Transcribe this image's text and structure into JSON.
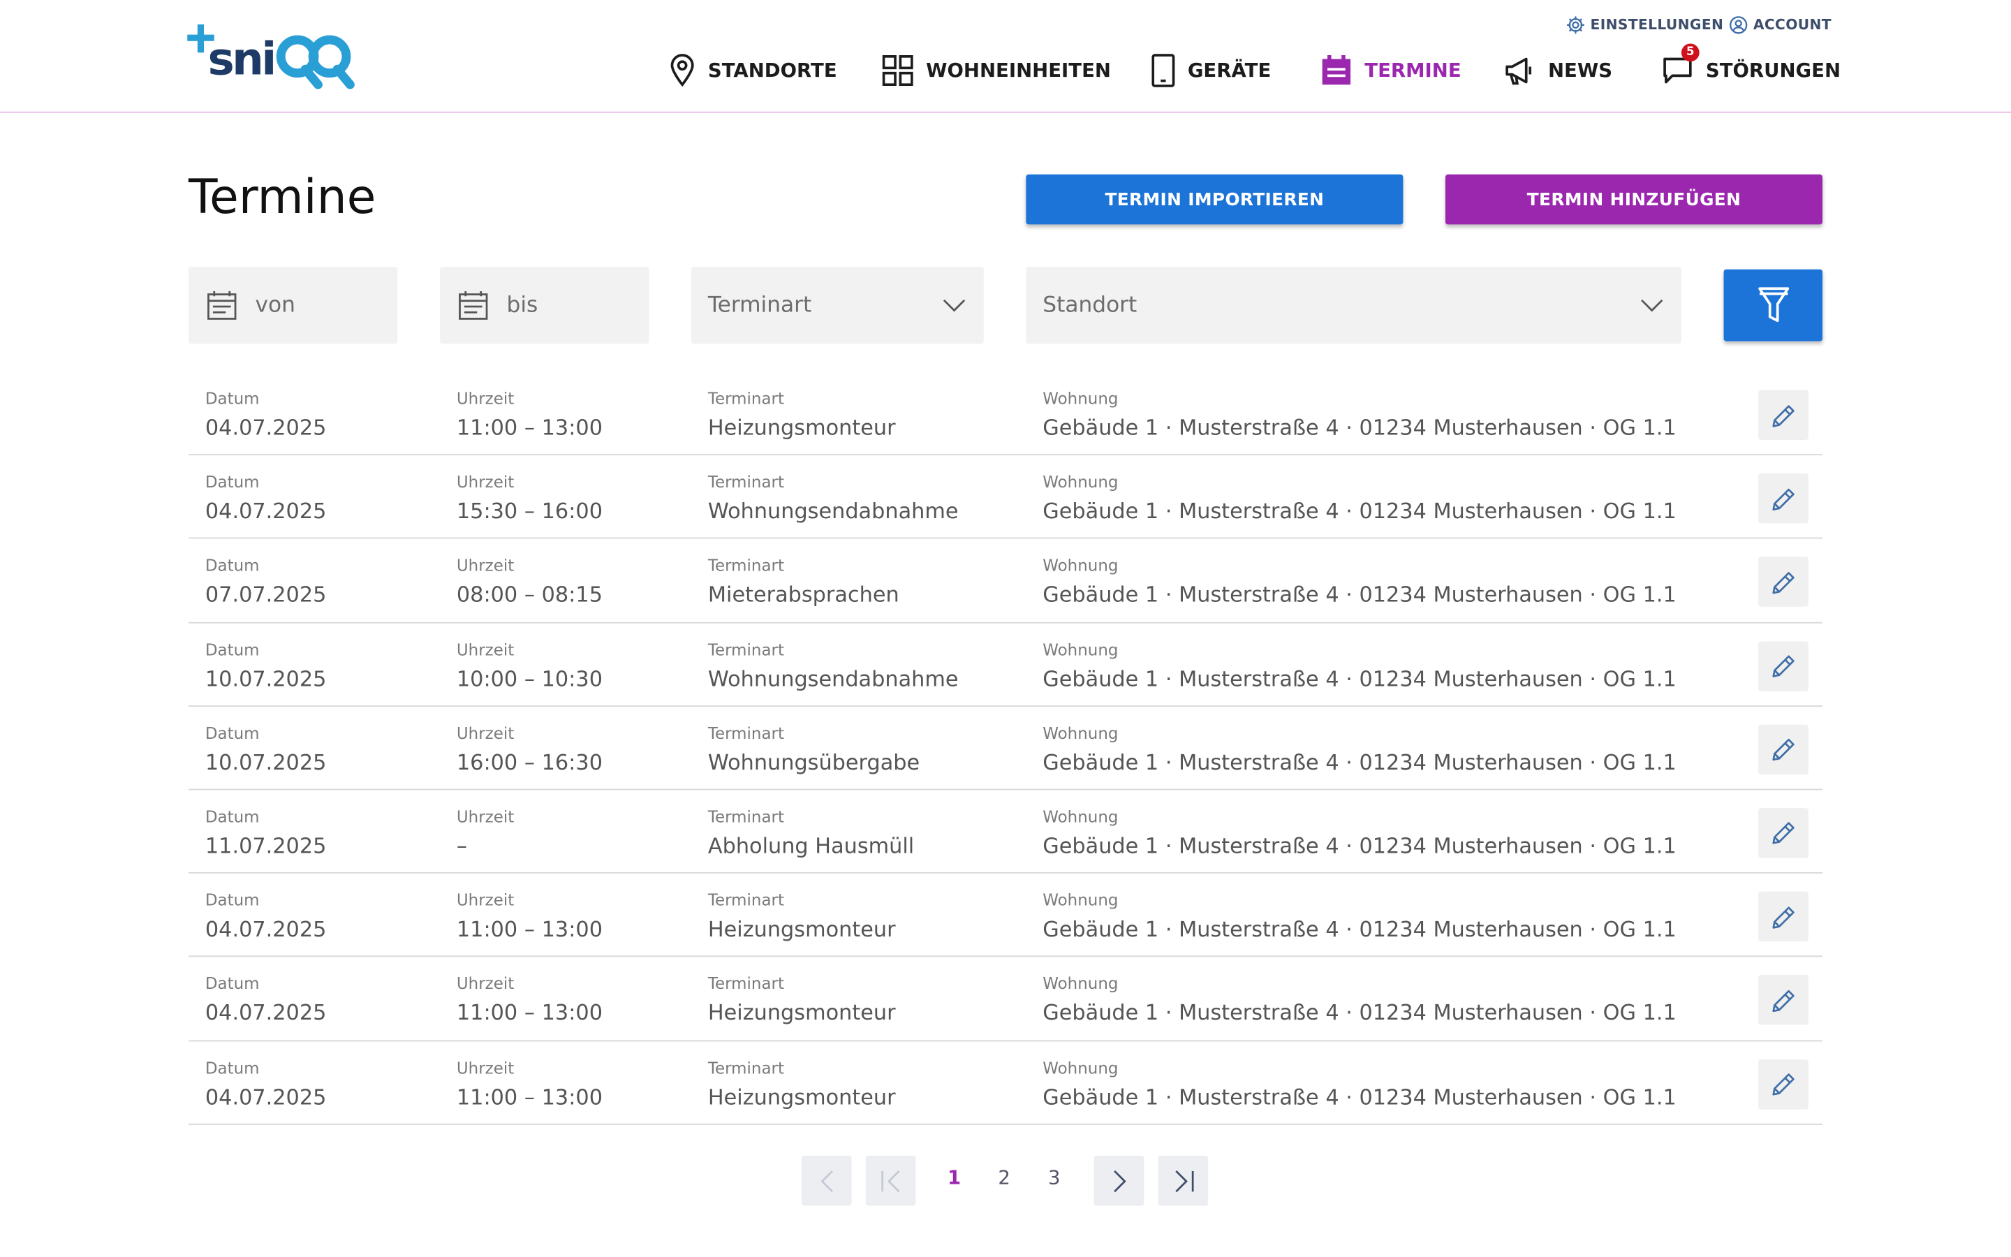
{
  "brand": {
    "logo_text": "sniQQ",
    "accent": "#9b27af",
    "primary": "#1c74d9"
  },
  "header": {
    "utility": [
      {
        "label": "EINSTELLUNGEN",
        "icon": "gear-icon"
      },
      {
        "label": "ACCOUNT",
        "icon": "user-circle-icon"
      }
    ],
    "nav": [
      {
        "label": "STANDORTE",
        "icon": "map-pin-icon"
      },
      {
        "label": "WOHNEINHEITEN",
        "icon": "grid-icon"
      },
      {
        "label": "GERÄTE",
        "icon": "tablet-icon"
      },
      {
        "label": "TERMINE",
        "icon": "calendar-icon",
        "active": true
      },
      {
        "label": "NEWS",
        "icon": "megaphone-icon"
      },
      {
        "label": "STÖRUNGEN",
        "icon": "chat-alert-icon",
        "badge": "5"
      }
    ]
  },
  "page": {
    "title": "Termine",
    "import_label": "TERMIN IMPORTIEREN",
    "add_label": "TERMIN HINZUFÜGEN"
  },
  "filters": {
    "from_placeholder": "von",
    "to_placeholder": "bis",
    "type_placeholder": "Terminart",
    "location_placeholder": "Standort"
  },
  "table": {
    "headers": {
      "date": "Datum",
      "time": "Uhrzeit",
      "type": "Terminart",
      "flat": "Wohnung"
    },
    "rows": [
      {
        "date": "04.07.2025",
        "time": "11:00 – 13:00",
        "type": "Heizungsmonteur",
        "flat": "Gebäude 1 · Musterstraße 4 · 01234 Musterhausen · OG 1.1"
      },
      {
        "date": "04.07.2025",
        "time": "15:30 – 16:00",
        "type": "Wohnungsendabnahme",
        "flat": "Gebäude 1 · Musterstraße 4 · 01234 Musterhausen · OG 1.1"
      },
      {
        "date": "07.07.2025",
        "time": "08:00 – 08:15",
        "type": "Mieterabsprachen",
        "flat": "Gebäude 1 · Musterstraße 4 · 01234 Musterhausen · OG 1.1"
      },
      {
        "date": "10.07.2025",
        "time": "10:00 – 10:30",
        "type": "Wohnungsendabnahme",
        "flat": "Gebäude 1 · Musterstraße 4 · 01234 Musterhausen · OG 1.1"
      },
      {
        "date": "10.07.2025",
        "time": "16:00 – 16:30",
        "type": "Wohnungsübergabe",
        "flat": "Gebäude 1 · Musterstraße 4 · 01234 Musterhausen · OG 1.1"
      },
      {
        "date": "11.07.2025",
        "time": "–",
        "type": "Abholung Hausmüll",
        "flat": "Gebäude 1 · Musterstraße 4 · 01234 Musterhausen · OG 1.1"
      },
      {
        "date": "04.07.2025",
        "time": "11:00 – 13:00",
        "type": "Heizungsmonteur",
        "flat": "Gebäude 1 · Musterstraße 4 · 01234 Musterhausen · OG 1.1"
      },
      {
        "date": "04.07.2025",
        "time": "11:00 – 13:00",
        "type": "Heizungsmonteur",
        "flat": "Gebäude 1 · Musterstraße 4 · 01234 Musterhausen · OG 1.1"
      },
      {
        "date": "04.07.2025",
        "time": "11:00 – 13:00",
        "type": "Heizungsmonteur",
        "flat": "Gebäude 1 · Musterstraße 4 · 01234 Musterhausen · OG 1.1"
      }
    ]
  },
  "pagination": {
    "pages": [
      "1",
      "2",
      "3"
    ],
    "current": "1"
  }
}
